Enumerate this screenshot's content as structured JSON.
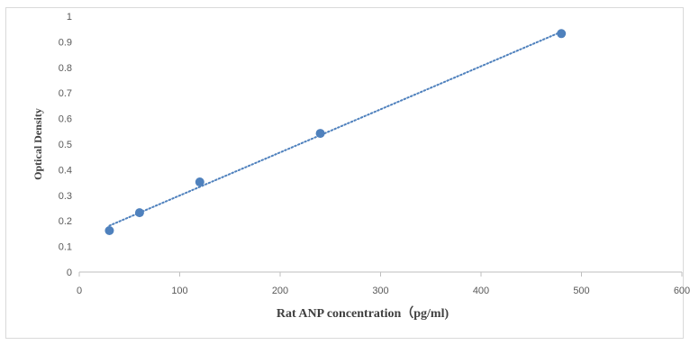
{
  "chart_data": {
    "type": "scatter",
    "title": "",
    "xlabel": "Rat  ANP concentration（pg/ml)",
    "ylabel": "Optical Density",
    "xlim": [
      0,
      600
    ],
    "ylim": [
      0,
      1
    ],
    "x_ticks": [
      "0",
      "100",
      "200",
      "300",
      "400",
      "500",
      "600"
    ],
    "y_ticks": [
      "0",
      "0.1",
      "0.2",
      "0.3",
      "0.4",
      "0.5",
      "0.6",
      "0.7",
      "0.8",
      "0.9",
      "1"
    ],
    "grid": false,
    "legend": "none",
    "series": [
      {
        "points": [
          {
            "x": 30,
            "y": 0.162
          },
          {
            "x": 60,
            "y": 0.232
          },
          {
            "x": 120,
            "y": 0.352
          },
          {
            "x": 240,
            "y": 0.542
          },
          {
            "x": 480,
            "y": 0.932
          }
        ],
        "color": "#4f81bd",
        "trendline": "linear",
        "trendline_style": "dotted"
      }
    ]
  }
}
